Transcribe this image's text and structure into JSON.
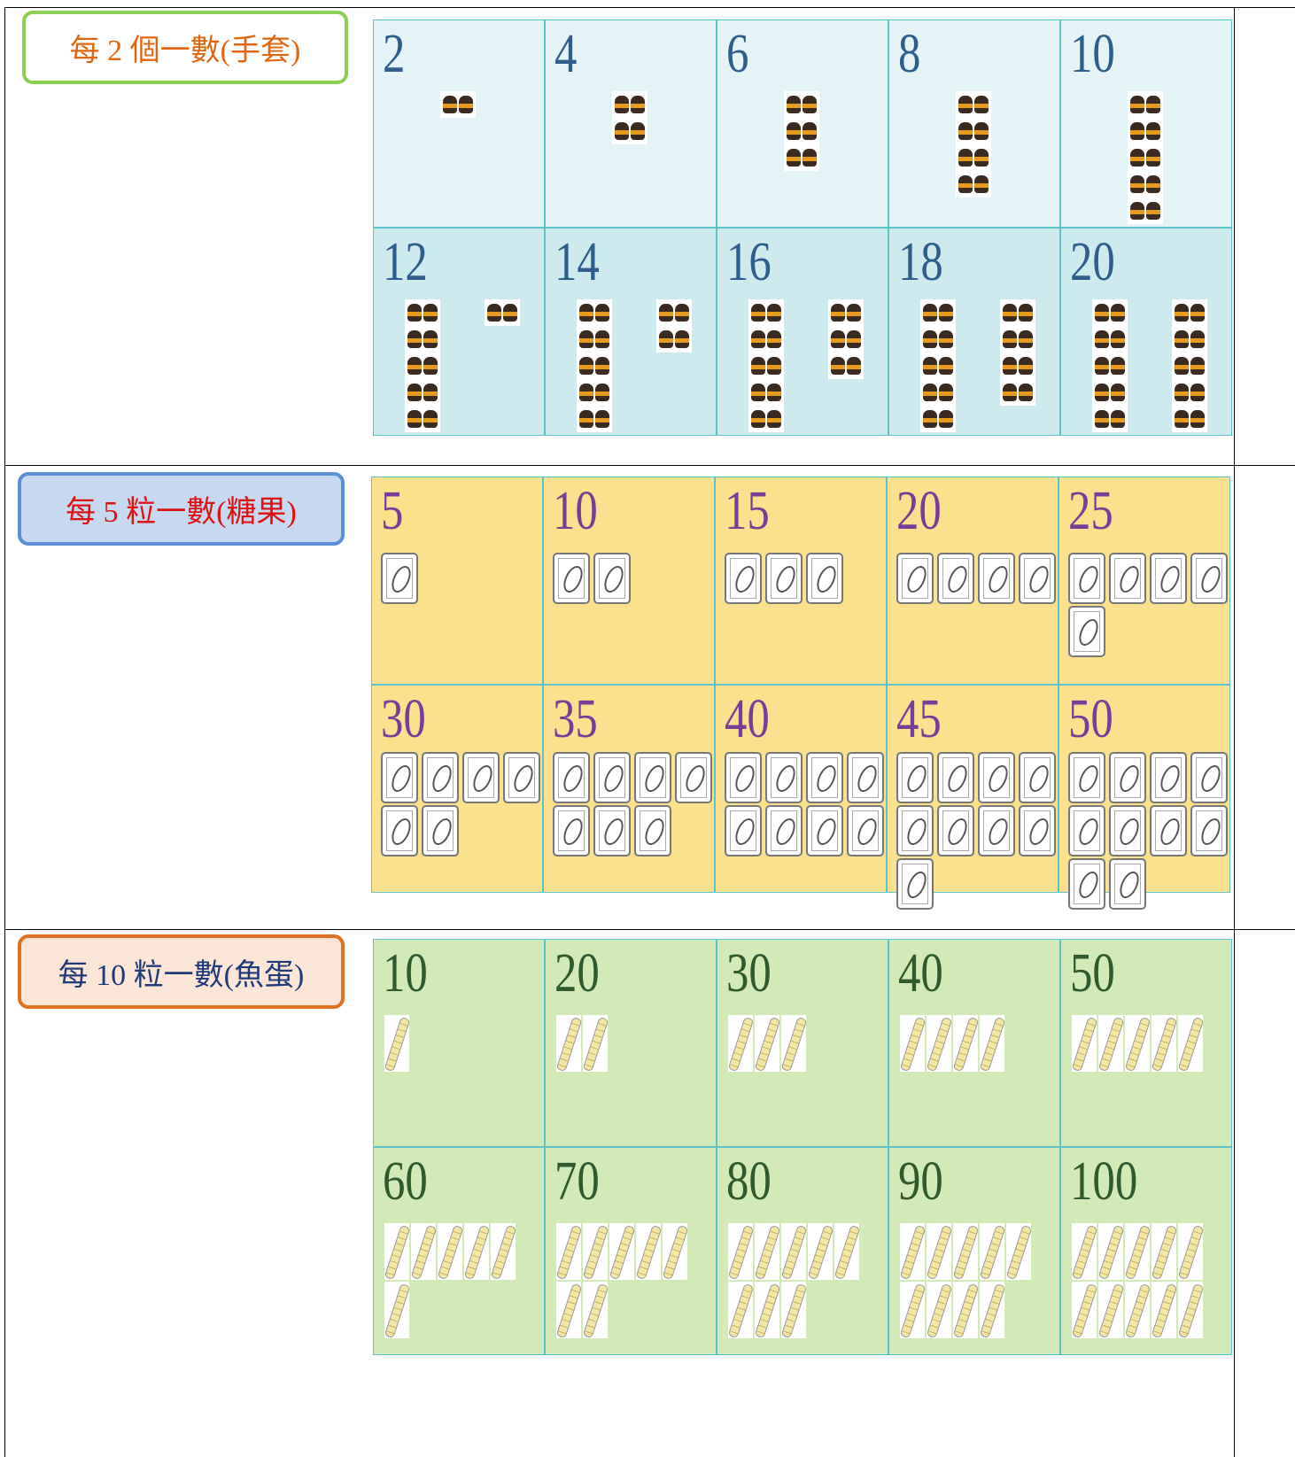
{
  "sections": [
    {
      "label": "每 2 個一數(手套)",
      "rows": [
        [
          2,
          4,
          6,
          8,
          10
        ],
        [
          12,
          14,
          16,
          18,
          20
        ]
      ]
    },
    {
      "label": "每 5 粒一數(糖果)",
      "rows": [
        [
          5,
          10,
          15,
          20,
          25
        ],
        [
          30,
          35,
          40,
          45,
          50
        ]
      ]
    },
    {
      "label": "每 10 粒一數(魚蛋)",
      "rows": [
        [
          10,
          20,
          30,
          40,
          50
        ],
        [
          60,
          70,
          80,
          90,
          100
        ]
      ]
    }
  ]
}
